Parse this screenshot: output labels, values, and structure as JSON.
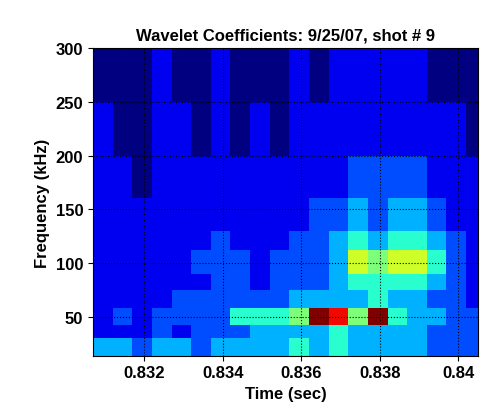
{
  "chart_data": {
    "type": "heatmap",
    "title": "Wavelet Coefficients: 9/25/07, shot # 9",
    "x_label": "Time (sec)",
    "y_label": "Frequency (kHz)",
    "xlim": [
      0.8307,
      0.8405
    ],
    "ylim": [
      13.5,
      300
    ],
    "xticks": [
      0.832,
      0.834,
      0.836,
      0.838,
      0.84
    ],
    "yticks": [
      50,
      100,
      150,
      200,
      250,
      300
    ],
    "grid": true,
    "x_edges": [
      0.8307,
      0.8312,
      0.8317,
      0.8322,
      0.8327,
      0.8332,
      0.8337,
      0.8342,
      0.8347,
      0.8352,
      0.8357,
      0.8362,
      0.8367,
      0.8372,
      0.8377,
      0.8382,
      0.8387,
      0.8392,
      0.8397,
      0.8402,
      0.8407
    ],
    "y_edges": [
      13.5,
      30,
      42,
      58,
      75,
      90,
      112,
      130,
      160,
      200,
      250,
      300
    ],
    "color_range": [
      0,
      10
    ],
    "cells": [
      [
        3,
        3,
        2,
        3,
        3,
        2,
        3,
        3,
        3,
        3,
        4,
        3,
        4,
        3,
        3,
        3,
        3,
        2,
        2,
        2
      ],
      [
        1,
        1,
        1,
        2,
        1,
        2,
        2,
        2,
        3,
        3,
        3,
        3,
        4,
        3,
        3,
        3,
        3,
        2,
        2,
        2
      ],
      [
        1,
        2,
        1,
        2,
        2,
        2,
        2,
        4,
        4,
        4,
        5,
        10,
        9,
        5,
        10,
        4,
        3,
        3,
        2,
        2
      ],
      [
        1,
        1,
        1,
        1,
        2,
        2,
        2,
        2,
        2,
        2,
        3,
        3,
        3,
        3,
        4,
        3,
        3,
        2,
        2,
        1
      ],
      [
        1,
        1,
        1,
        1,
        1,
        1,
        2,
        2,
        1,
        2,
        2,
        2,
        3,
        4,
        4,
        4,
        4,
        3,
        2,
        1
      ],
      [
        1,
        1,
        1,
        1,
        1,
        2,
        2,
        2,
        1,
        2,
        2,
        2,
        3,
        6,
        5,
        6,
        6,
        4,
        2,
        1
      ],
      [
        1,
        1,
        1,
        1,
        1,
        1,
        2,
        1,
        1,
        1,
        2,
        2,
        3,
        4,
        3,
        4,
        4,
        3,
        2,
        1
      ],
      [
        1,
        1,
        1,
        1,
        1,
        1,
        1,
        1,
        1,
        1,
        1,
        2,
        2,
        3,
        2,
        3,
        3,
        2,
        1,
        1
      ],
      [
        1,
        1,
        0,
        1,
        1,
        1,
        1,
        1,
        1,
        1,
        1,
        1,
        1,
        2,
        2,
        2,
        2,
        1,
        1,
        1
      ],
      [
        1,
        0,
        0,
        1,
        1,
        0,
        1,
        0,
        1,
        0,
        1,
        1,
        1,
        1,
        1,
        1,
        1,
        1,
        1,
        0
      ],
      [
        0,
        0,
        0,
        1,
        0,
        0,
        1,
        0,
        0,
        0,
        1,
        0,
        1,
        1,
        1,
        1,
        1,
        0,
        0,
        0
      ]
    ]
  }
}
